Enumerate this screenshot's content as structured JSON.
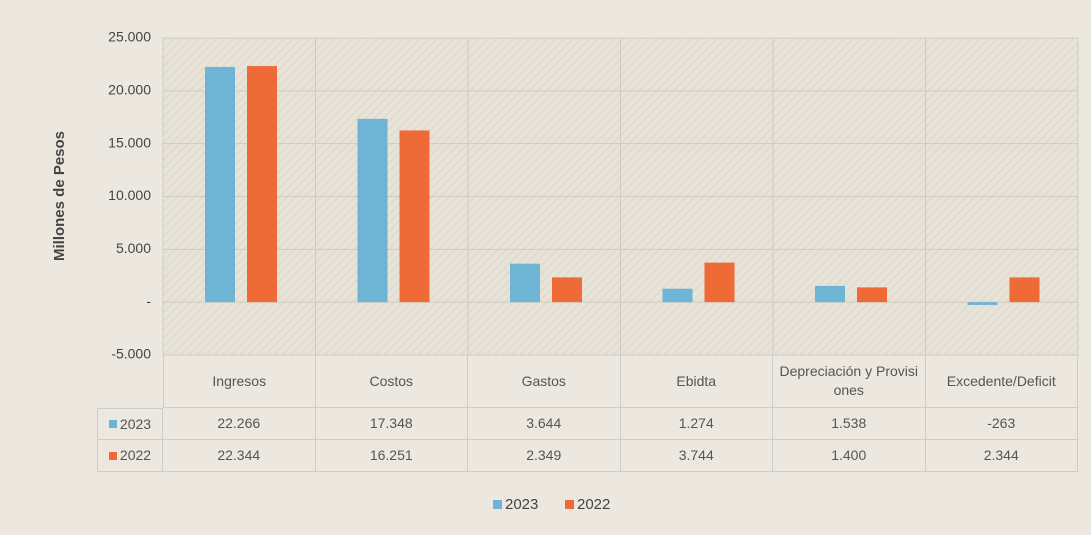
{
  "chart_data": {
    "type": "bar",
    "y_label": "Millones de Pesos",
    "categories": [
      "Ingresos",
      "Costos",
      "Gastos",
      "Ebidta",
      "Depreciación y Provisiones",
      "Excedente/Deficit"
    ],
    "series": [
      {
        "name": "2023",
        "color": "#6eb4d4",
        "values": [
          22266,
          17348,
          3644,
          1274,
          1538,
          -263
        ],
        "value_labels": [
          "22.266",
          "17.348",
          "3.644",
          "1.274",
          "1.538",
          "-263"
        ]
      },
      {
        "name": "2022",
        "color": "#ee6b37",
        "values": [
          22344,
          16251,
          2349,
          3744,
          1400,
          2344
        ],
        "value_labels": [
          "22.344",
          "16.251",
          "2.349",
          "3.744",
          "1.400",
          "2.344"
        ]
      }
    ],
    "ylim": [
      -5000,
      25000
    ],
    "yticks": [
      {
        "value": -5000,
        "label": "-5.000"
      },
      {
        "value": 0,
        "label": "-"
      },
      {
        "value": 5000,
        "label": "5.000"
      },
      {
        "value": 10000,
        "label": "10.000"
      },
      {
        "value": 15000,
        "label": "15.000"
      },
      {
        "value": 20000,
        "label": "20.000"
      },
      {
        "value": 25000,
        "label": "25.000"
      }
    ],
    "grid": true
  }
}
